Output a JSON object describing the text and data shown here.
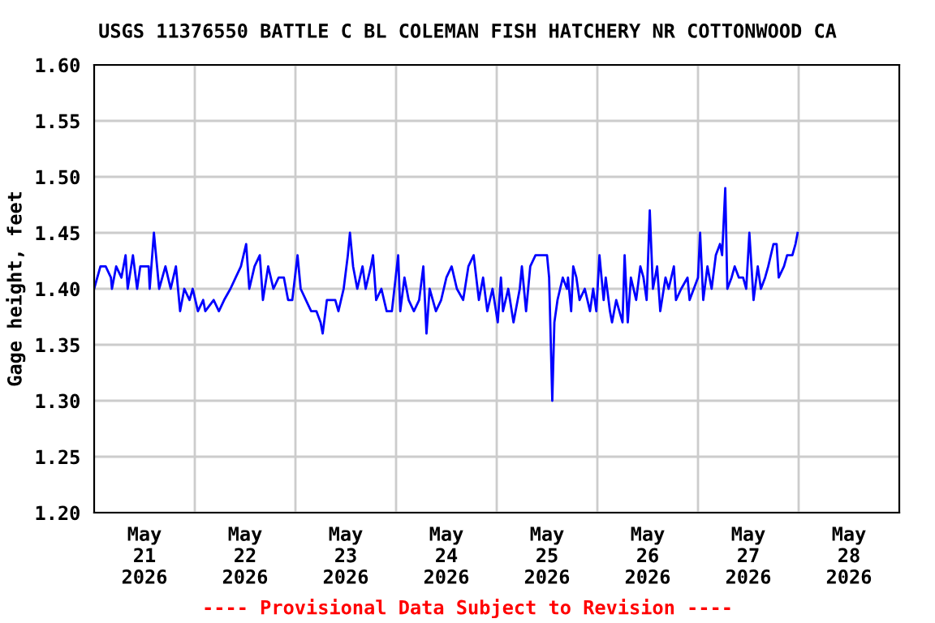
{
  "chart_data": {
    "type": "line",
    "title": "USGS 11376550 BATTLE C BL COLEMAN FISH HATCHERY NR COTTONWOOD CA",
    "ylabel": "Gage height, feet",
    "annotations": [
      "---- Provisional Data Subject to Revision ----"
    ],
    "x": [
      "2026-05-21T00:00",
      "2026-05-21T01:30",
      "2026-05-21T02:45",
      "2026-05-21T04:00",
      "2026-05-21T04:15",
      "2026-05-21T05:15",
      "2026-05-21T06:30",
      "2026-05-21T07:30",
      "2026-05-21T08:00",
      "2026-05-21T09:15",
      "2026-05-21T10:15",
      "2026-05-21T11:00",
      "2026-05-21T13:00",
      "2026-05-21T13:15",
      "2026-05-21T14:15",
      "2026-05-21T15:00",
      "2026-05-21T15:30",
      "2026-05-21T17:00",
      "2026-05-21T18:15",
      "2026-05-21T19:30",
      "2026-05-21T20:30",
      "2026-05-21T21:30",
      "2026-05-21T22:45",
      "2026-05-21T23:30",
      "2026-05-22T00:45",
      "2026-05-22T02:00",
      "2026-05-22T02:30",
      "2026-05-22T04:30",
      "2026-05-22T05:45",
      "2026-05-22T07:00",
      "2026-05-22T08:30",
      "2026-05-22T09:45",
      "2026-05-22T11:00",
      "2026-05-22T12:15",
      "2026-05-22T13:00",
      "2026-05-22T14:15",
      "2026-05-22T15:30",
      "2026-05-22T16:15",
      "2026-05-22T17:30",
      "2026-05-22T18:45",
      "2026-05-22T20:00",
      "2026-05-22T21:15",
      "2026-05-22T22:15",
      "2026-05-22T23:15",
      "2026-05-23T00:30",
      "2026-05-23T01:15",
      "2026-05-23T02:30",
      "2026-05-23T03:45",
      "2026-05-23T05:00",
      "2026-05-23T06:00",
      "2026-05-23T06:30",
      "2026-05-23T07:30",
      "2026-05-23T09:00",
      "2026-05-23T09:30",
      "2026-05-23T10:15",
      "2026-05-23T11:30",
      "2026-05-23T12:30",
      "2026-05-23T13:00",
      "2026-05-23T13:45",
      "2026-05-23T14:45",
      "2026-05-23T16:00",
      "2026-05-23T16:45",
      "2026-05-23T18:00",
      "2026-05-23T18:30",
      "2026-05-23T19:15",
      "2026-05-23T20:30",
      "2026-05-23T21:45",
      "2026-05-23T23:00",
      "2026-05-24T00:30",
      "2026-05-24T01:00",
      "2026-05-24T02:00",
      "2026-05-24T03:00",
      "2026-05-24T04:15",
      "2026-05-24T05:30",
      "2026-05-24T06:30",
      "2026-05-24T07:15",
      "2026-05-24T08:00",
      "2026-05-24T09:30",
      "2026-05-24T10:45",
      "2026-05-24T12:00",
      "2026-05-24T13:15",
      "2026-05-24T14:30",
      "2026-05-24T16:00",
      "2026-05-24T17:15",
      "2026-05-24T18:30",
      "2026-05-24T19:45",
      "2026-05-24T20:45",
      "2026-05-24T21:45",
      "2026-05-24T23:00",
      "2026-05-25T00:15",
      "2026-05-25T01:00",
      "2026-05-25T01:30",
      "2026-05-25T02:45",
      "2026-05-25T04:00",
      "2026-05-25T05:30",
      "2026-05-25T06:00",
      "2026-05-25T07:00",
      "2026-05-25T08:00",
      "2026-05-25T09:15",
      "2026-05-25T10:30",
      "2026-05-25T12:00",
      "2026-05-25T12:30",
      "2026-05-25T13:15",
      "2026-05-25T13:45",
      "2026-05-25T14:30",
      "2026-05-25T15:45",
      "2026-05-25T16:45",
      "2026-05-25T17:00",
      "2026-05-25T17:45",
      "2026-05-25T18:15",
      "2026-05-25T19:00",
      "2026-05-25T19:45",
      "2026-05-25T21:00",
      "2026-05-25T22:15",
      "2026-05-25T23:00",
      "2026-05-25T23:45",
      "2026-05-26T00:30",
      "2026-05-26T01:30",
      "2026-05-26T02:00",
      "2026-05-26T03:00",
      "2026-05-26T03:30",
      "2026-05-26T04:30",
      "2026-05-26T05:15",
      "2026-05-26T06:00",
      "2026-05-26T06:30",
      "2026-05-26T07:15",
      "2026-05-26T08:00",
      "2026-05-26T09:15",
      "2026-05-26T10:15",
      "2026-05-26T11:00",
      "2026-05-26T11:45",
      "2026-05-26T12:30",
      "2026-05-26T13:15",
      "2026-05-26T14:15",
      "2026-05-26T15:00",
      "2026-05-26T16:15",
      "2026-05-26T17:00",
      "2026-05-26T18:15",
      "2026-05-26T18:45",
      "2026-05-26T20:00",
      "2026-05-26T21:30",
      "2026-05-26T22:00",
      "2026-05-26T23:00",
      "2026-05-27T00:00",
      "2026-05-27T00:30",
      "2026-05-27T01:15",
      "2026-05-27T02:15",
      "2026-05-27T03:15",
      "2026-05-27T04:15",
      "2026-05-27T05:15",
      "2026-05-27T05:45",
      "2026-05-27T06:30",
      "2026-05-27T07:00",
      "2026-05-27T08:00",
      "2026-05-27T08:45",
      "2026-05-27T09:45",
      "2026-05-27T10:45",
      "2026-05-27T11:30",
      "2026-05-27T12:15",
      "2026-05-27T13:15",
      "2026-05-27T14:15",
      "2026-05-27T15:00",
      "2026-05-27T16:00",
      "2026-05-27T16:45",
      "2026-05-27T18:00",
      "2026-05-27T18:45",
      "2026-05-27T19:15",
      "2026-05-27T20:30",
      "2026-05-27T21:15",
      "2026-05-27T22:30",
      "2026-05-27T23:15",
      "2026-05-27T23:45"
    ],
    "series": [
      {
        "color": "#0000ff",
        "values": [
          1.4,
          1.42,
          1.42,
          1.41,
          1.4,
          1.42,
          1.41,
          1.43,
          1.4,
          1.43,
          1.4,
          1.42,
          1.42,
          1.4,
          1.45,
          1.42,
          1.4,
          1.42,
          1.4,
          1.42,
          1.38,
          1.4,
          1.39,
          1.4,
          1.38,
          1.39,
          1.38,
          1.39,
          1.38,
          1.39,
          1.4,
          1.41,
          1.42,
          1.44,
          1.4,
          1.42,
          1.43,
          1.39,
          1.42,
          1.4,
          1.41,
          1.41,
          1.39,
          1.39,
          1.43,
          1.4,
          1.39,
          1.38,
          1.38,
          1.37,
          1.36,
          1.39,
          1.39,
          1.39,
          1.38,
          1.4,
          1.43,
          1.45,
          1.42,
          1.4,
          1.42,
          1.4,
          1.42,
          1.43,
          1.39,
          1.4,
          1.38,
          1.38,
          1.43,
          1.38,
          1.41,
          1.39,
          1.38,
          1.39,
          1.42,
          1.36,
          1.4,
          1.38,
          1.39,
          1.41,
          1.42,
          1.4,
          1.39,
          1.42,
          1.43,
          1.39,
          1.41,
          1.38,
          1.4,
          1.37,
          1.41,
          1.38,
          1.4,
          1.37,
          1.4,
          1.42,
          1.38,
          1.42,
          1.43,
          1.43,
          1.43,
          1.41,
          1.3,
          1.37,
          1.39,
          1.41,
          1.4,
          1.41,
          1.38,
          1.42,
          1.41,
          1.39,
          1.4,
          1.38,
          1.4,
          1.38,
          1.43,
          1.39,
          1.41,
          1.38,
          1.37,
          1.39,
          1.38,
          1.37,
          1.43,
          1.37,
          1.41,
          1.39,
          1.42,
          1.41,
          1.39,
          1.47,
          1.4,
          1.42,
          1.38,
          1.41,
          1.4,
          1.42,
          1.39,
          1.4,
          1.41,
          1.39,
          1.4,
          1.41,
          1.45,
          1.39,
          1.42,
          1.4,
          1.43,
          1.44,
          1.43,
          1.49,
          1.4,
          1.41,
          1.42,
          1.41,
          1.41,
          1.4,
          1.45,
          1.39,
          1.42,
          1.4,
          1.41,
          1.42,
          1.44,
          1.44,
          1.41,
          1.42,
          1.43,
          1.43,
          1.44,
          1.45
        ]
      }
    ],
    "xlim": [
      "2026-05-21",
      "2026-05-29"
    ],
    "xticks": [
      {
        "value": "2026-05-21T12:00",
        "label": "May\n21\n2026"
      },
      {
        "value": "2026-05-22",
        "label": null
      },
      {
        "value": "2026-05-22T12:00",
        "label": "May\n22\n2026"
      },
      {
        "value": "2026-05-23",
        "label": null
      },
      {
        "value": "2026-05-23T12:00",
        "label": "May\n23\n2026"
      },
      {
        "value": "2026-05-24",
        "label": null
      },
      {
        "value": "2026-05-24T12:00",
        "label": "May\n24\n2026"
      },
      {
        "value": "2026-05-25",
        "label": null
      },
      {
        "value": "2026-05-25T12:00",
        "label": "May\n25\n2026"
      },
      {
        "value": "2026-05-26",
        "label": null
      },
      {
        "value": "2026-05-26T12:00",
        "label": "May\n26\n2026"
      },
      {
        "value": "2026-05-27",
        "label": null
      },
      {
        "value": "2026-05-27T12:00",
        "label": "May\n27\n2026"
      },
      {
        "value": "2026-05-28",
        "label": null
      },
      {
        "value": "2026-05-28T12:00",
        "label": "May\n28\n2026"
      }
    ],
    "ylim": [
      1.2,
      1.6
    ],
    "yticks": [
      {
        "value": 1.2,
        "label": "1.20"
      },
      {
        "value": 1.25,
        "label": "1.25"
      },
      {
        "value": 1.3,
        "label": "1.30"
      },
      {
        "value": 1.35,
        "label": "1.35"
      },
      {
        "value": 1.4,
        "label": "1.40"
      },
      {
        "value": 1.45,
        "label": "1.45"
      },
      {
        "value": 1.5,
        "label": "1.50"
      },
      {
        "value": 1.55,
        "label": "1.55"
      },
      {
        "value": 1.6,
        "label": "1.60"
      }
    ],
    "grid": true,
    "line_style": "solid"
  }
}
